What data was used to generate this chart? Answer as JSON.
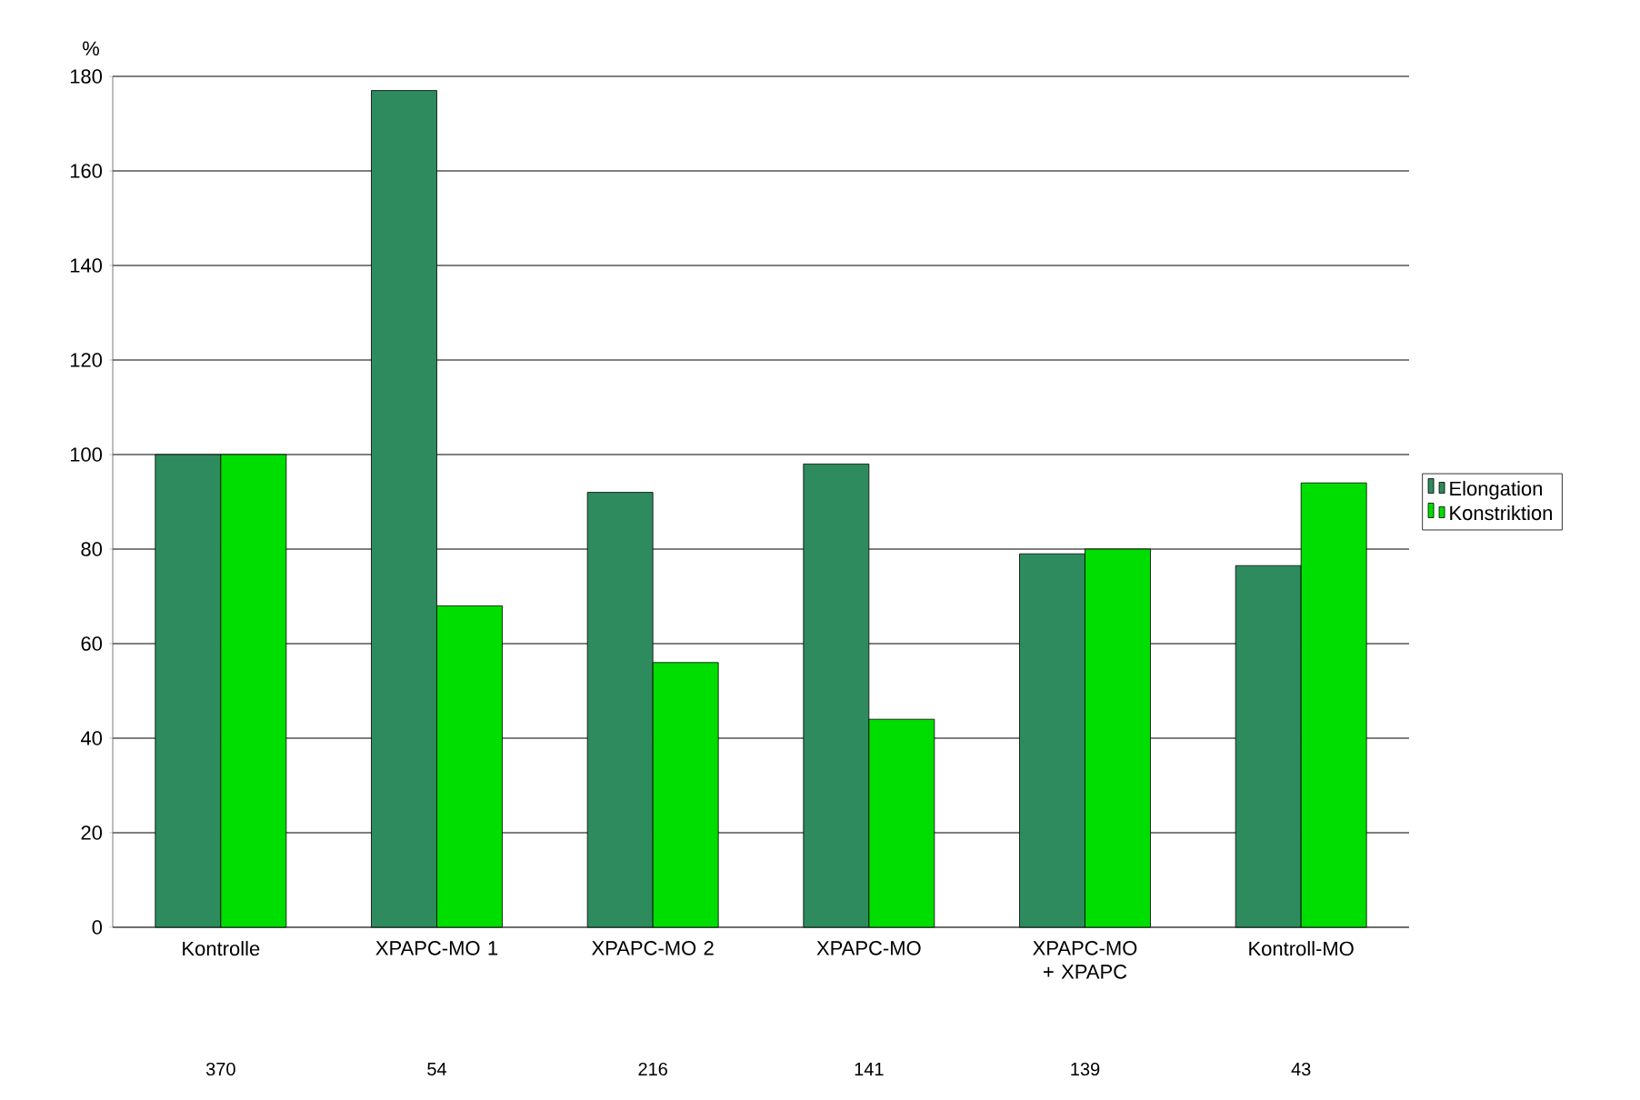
{
  "chart_data": {
    "type": "bar",
    "ylabel": "%",
    "categories": [
      "Kontrolle",
      "XPAPC-MO 1",
      "XPAPC-MO 2",
      "XPAPC-MO",
      "XPAPC-MO + XPAPC",
      "Kontroll-MO"
    ],
    "series": [
      {
        "name": "Elongation",
        "color": "#2e8b5e",
        "values": [
          100,
          177,
          92,
          98,
          79,
          76.5
        ]
      },
      {
        "name": "Konstriktion",
        "color": "#00dd00",
        "values": [
          100,
          68,
          56,
          44,
          80,
          94
        ]
      }
    ],
    "ylim": [
      0,
      180
    ],
    "yticks": [
      0,
      20,
      40,
      60,
      80,
      100,
      120,
      140,
      160,
      180
    ],
    "grid": "y",
    "legend": "right",
    "annotations": [
      "370",
      "54",
      "216",
      "141",
      "139",
      "43"
    ]
  }
}
